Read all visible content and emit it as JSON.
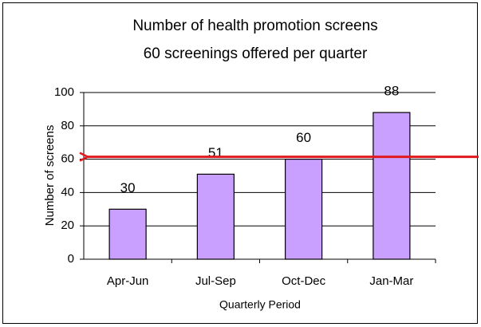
{
  "chart_data": {
    "type": "bar",
    "title": "Number of health promotion screens",
    "subtitle": "60 screenings offered per quarter",
    "x_label": "Quarterly Period",
    "y_label": "Number of screens",
    "categories": [
      "Apr-Jun",
      "Jul-Sep",
      "Oct-Dec",
      "Jan-Mar"
    ],
    "values": [
      30,
      51,
      60,
      88
    ],
    "color": "#c9a0ff",
    "target": 60,
    "target_color": "#e0191e",
    "ylim": [
      0,
      100
    ],
    "yticks": [
      0,
      20,
      40,
      60,
      80,
      100
    ],
    "grid": true
  }
}
